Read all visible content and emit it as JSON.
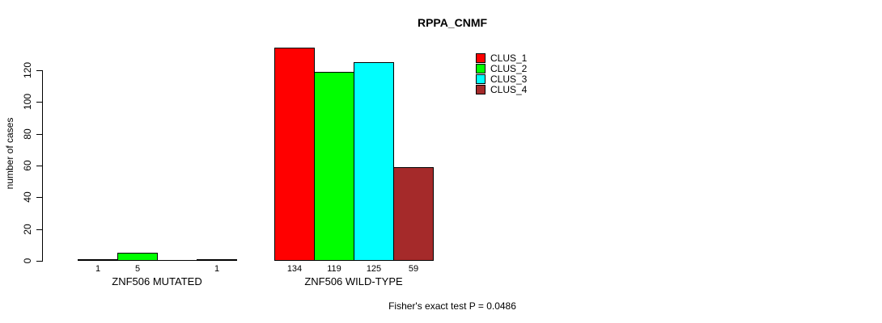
{
  "chart_data": {
    "type": "bar",
    "title": "RPPA_CNMF",
    "ylabel": "number of cases",
    "xlabel": "",
    "categories": [
      "ZNF506 MUTATED",
      "ZNF506 WILD-TYPE"
    ],
    "series": [
      {
        "name": "CLUS_1",
        "color": "#FF0000",
        "values": [
          1,
          134
        ]
      },
      {
        "name": "CLUS_2",
        "color": "#00FF00",
        "values": [
          5,
          119
        ]
      },
      {
        "name": "CLUS_3",
        "color": "#00FFFF",
        "values": [
          0,
          125
        ]
      },
      {
        "name": "CLUS_4",
        "color": "#A52A2A",
        "values": [
          1,
          59
        ]
      }
    ],
    "bar_labels": [
      [
        "1",
        "5",
        "",
        "1"
      ],
      [
        "134",
        "119",
        "125",
        "59"
      ]
    ],
    "yticks": [
      0,
      20,
      40,
      60,
      80,
      100,
      120
    ],
    "ylim": [
      0,
      140
    ],
    "grid": false,
    "legend_position": "top-right",
    "annotation": "Fisher's exact test P = 0.0486"
  }
}
